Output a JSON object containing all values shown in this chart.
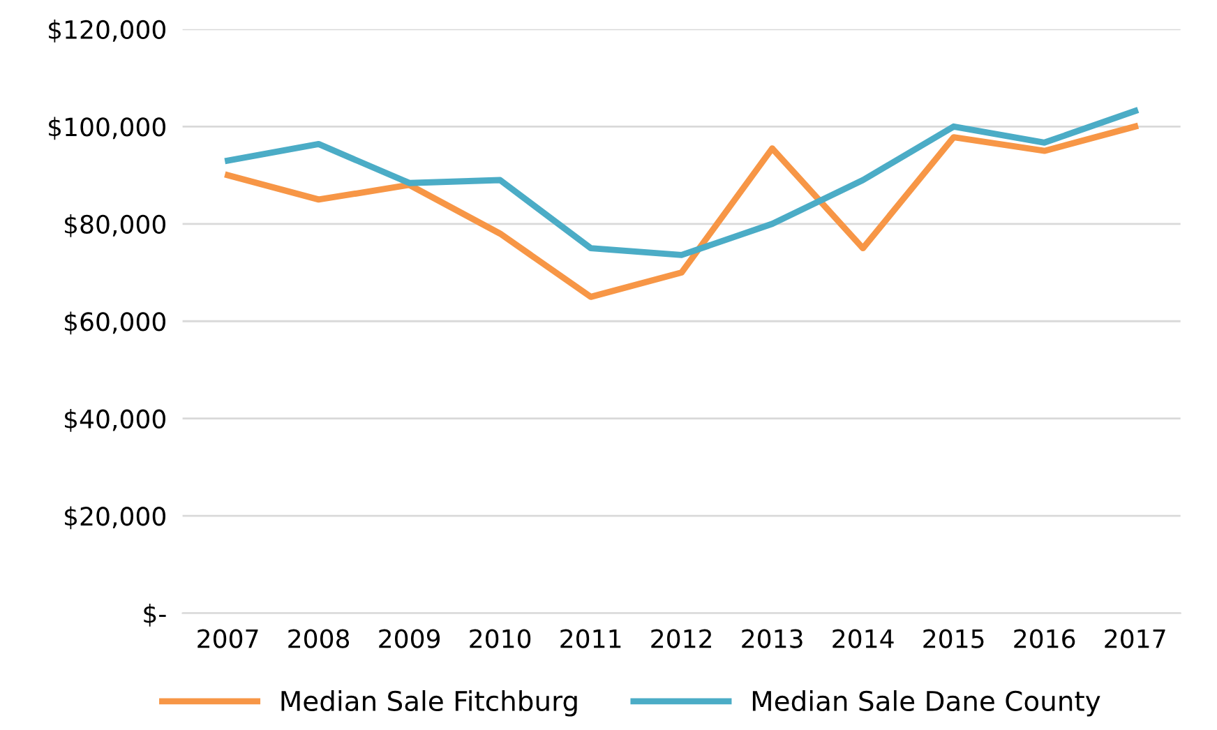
{
  "chart_data": {
    "type": "line",
    "categories": [
      "2007",
      "2008",
      "2009",
      "2010",
      "2011",
      "2012",
      "2013",
      "2014",
      "2015",
      "2016",
      "2017"
    ],
    "series": [
      {
        "name": "Median Sale Fitchburg",
        "color": "#f79646",
        "values": [
          90000,
          85000,
          88000,
          78000,
          65000,
          70000,
          95500,
          75000,
          97800,
          95000,
          100000
        ]
      },
      {
        "name": "Median Sale Dane County",
        "color": "#4bacc6",
        "values": [
          93000,
          96400,
          88400,
          89000,
          75000,
          73600,
          80000,
          89000,
          100000,
          96700,
          103200
        ]
      }
    ],
    "ylim": [
      0,
      120000
    ],
    "yticks": [
      {
        "value": 0,
        "label": "$-"
      },
      {
        "value": 20000,
        "label": "$20,000"
      },
      {
        "value": 40000,
        "label": "$40,000"
      },
      {
        "value": 60000,
        "label": "$60,000"
      },
      {
        "value": 80000,
        "label": "$80,000"
      },
      {
        "value": 100000,
        "label": "$100,000"
      },
      {
        "value": 120000,
        "label": "$120,000"
      }
    ],
    "grid": "y",
    "legend": "bottom",
    "marker": "none",
    "line_style": "solid"
  }
}
